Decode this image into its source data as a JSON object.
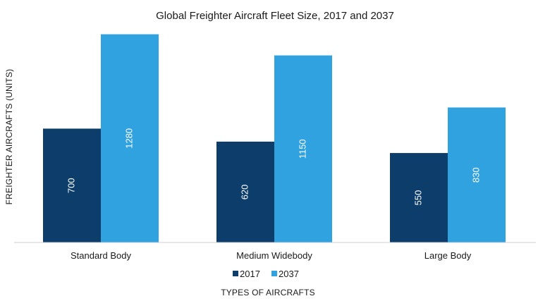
{
  "chart_data": {
    "type": "bar",
    "title": "Global Freighter Aircraft Fleet Size, 2017 and 2037",
    "xlabel": "TYPES OF AIRCRAFTS",
    "ylabel": "FREIGHTER AIRCRAFTS (UNITS)",
    "categories": [
      "Standard Body",
      "Medium Widebody",
      "Large Body"
    ],
    "series": [
      {
        "name": "2017",
        "values": [
          700,
          620,
          550
        ],
        "color": "#0c3d6b"
      },
      {
        "name": "2037",
        "values": [
          1280,
          1150,
          830
        ],
        "color": "#2fa2df"
      }
    ],
    "ylim": [
      0,
      1300
    ],
    "grid": false,
    "legend_position": "bottom"
  }
}
